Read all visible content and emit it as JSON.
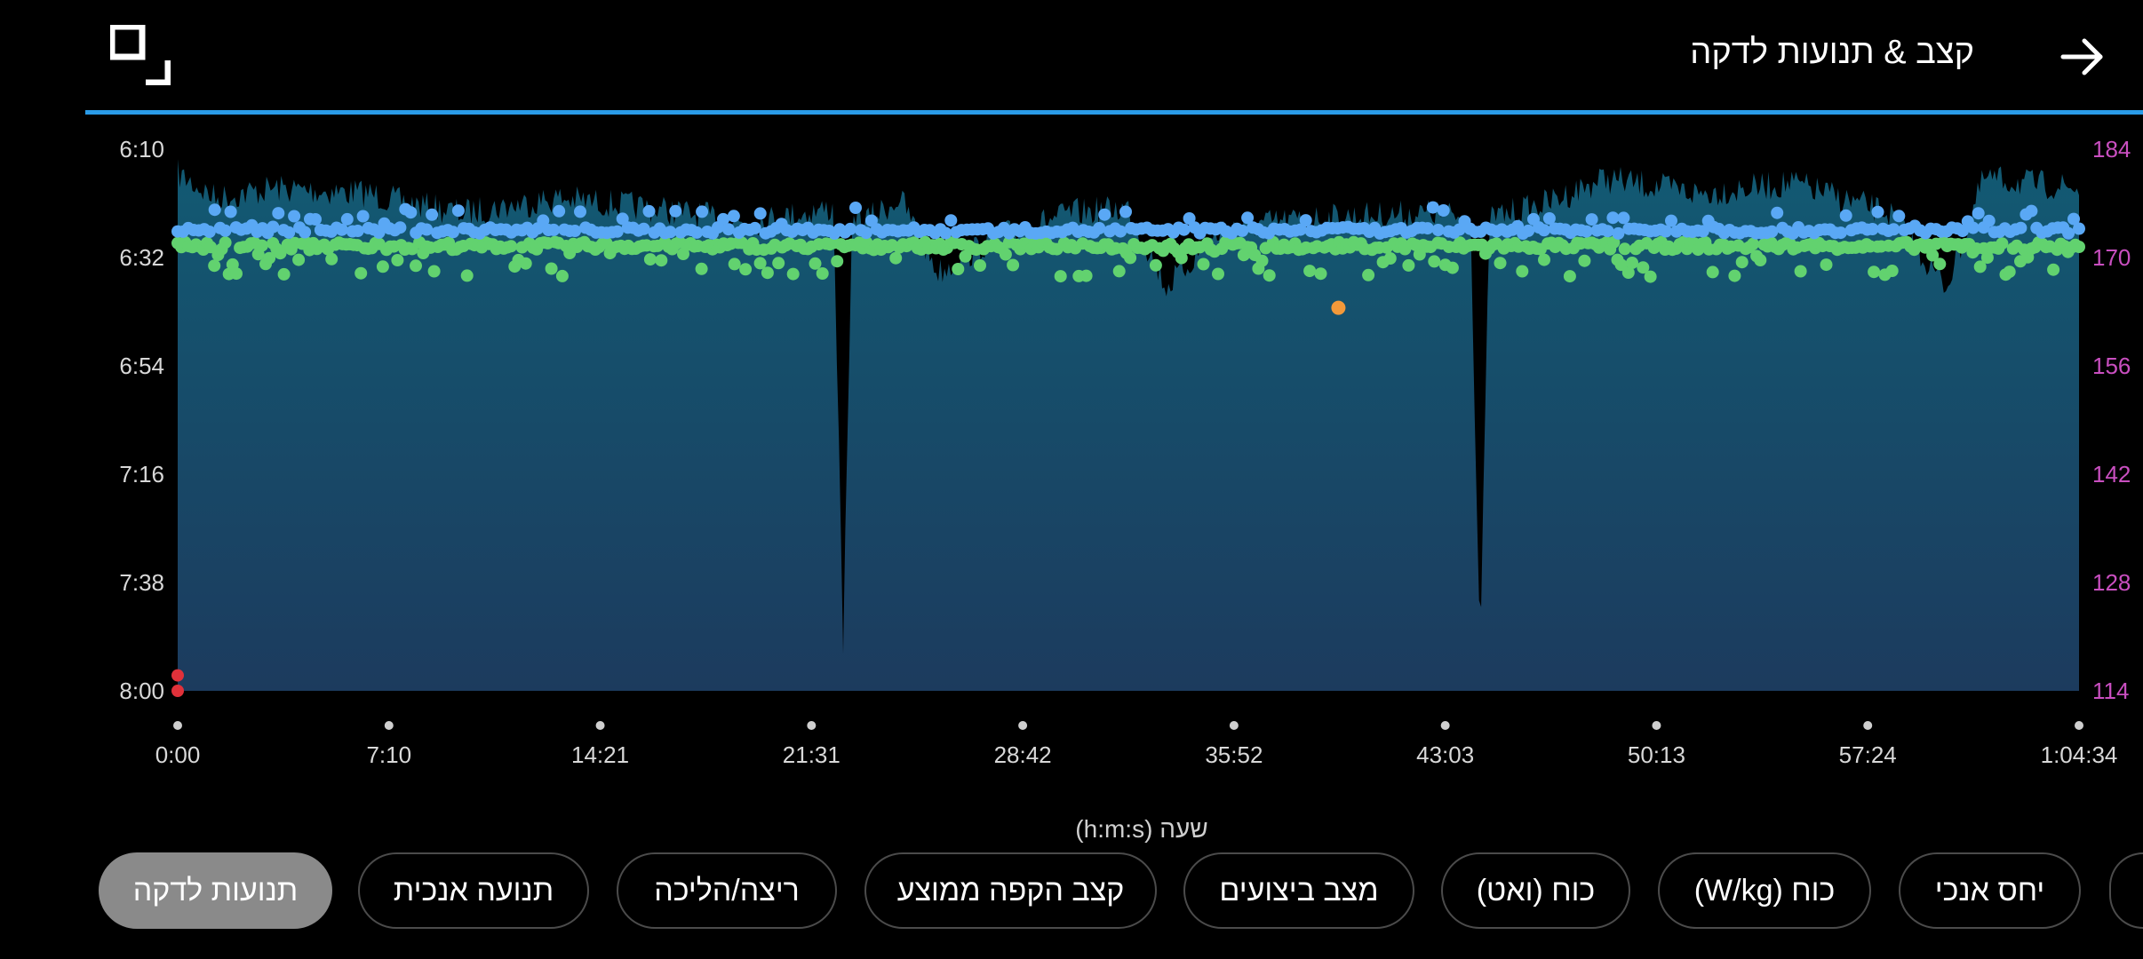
{
  "header": {
    "title": "קצב & תנועות לדקה",
    "back_icon": "arrow-right-icon",
    "expand_icon": "expand-icon"
  },
  "colors": {
    "accent_line": "#2a9be8",
    "pace_area_top": "#125a73",
    "pace_area_bottom": "#1c3b5e",
    "cadence_points": "#62d26f",
    "ground_points": "#5aa8f5",
    "right_axis_labels": "#c94fc0",
    "highlight_point": "#f2993a",
    "red_point": "#e0313a"
  },
  "chart_data": {
    "type": "area",
    "xlabel": "שעה (h:m:s)",
    "x_ticks": [
      "0:00",
      "7:10",
      "14:21",
      "21:31",
      "28:42",
      "35:52",
      "43:03",
      "50:13",
      "57:24",
      "1:04:34"
    ],
    "x_range_seconds": [
      0,
      3874
    ],
    "y_left": {
      "label": "",
      "ticks": [
        "6:10",
        "6:32",
        "6:54",
        "7:16",
        "7:38",
        "8:00"
      ],
      "range_min_per_km": [
        "6:10",
        "8:00"
      ],
      "scale": "pace"
    },
    "y_right": {
      "label": "",
      "ticks": [
        "184",
        "170",
        "156",
        "142",
        "128",
        "114"
      ],
      "range": [
        114,
        184
      ],
      "scale": "cadence"
    },
    "grid": false,
    "series": [
      {
        "kind": "pace-area",
        "profile_t": [
          0,
          0.02,
          0.05,
          0.1,
          0.12,
          0.15,
          0.2,
          0.25,
          0.3,
          0.33,
          0.345,
          0.35,
          0.355,
          0.36,
          0.38,
          0.4,
          0.43,
          0.47,
          0.5,
          0.52,
          0.55,
          0.6,
          0.66,
          0.68,
          0.685,
          0.69,
          0.7,
          0.72,
          0.75,
          0.8,
          0.85,
          0.9,
          0.93,
          0.95,
          1.0
        ],
        "profile_pace_sec": [
          375,
          380,
          378,
          379,
          381,
          383,
          380,
          382,
          385,
          383,
          382,
          470,
          382,
          385,
          380,
          395,
          388,
          383,
          382,
          398,
          386,
          384,
          383,
          384,
          472,
          384,
          383,
          381,
          376,
          379,
          377,
          383,
          398,
          376,
          378
        ]
      },
      {
        "kind": "cadence-points",
        "approx_value": 171.5,
        "min": 167.5,
        "max": 173.5
      },
      {
        "kind": "ground-points",
        "approx_value": 173.5,
        "min": 172.5,
        "max": 176.5
      },
      {
        "kind": "highlight-point",
        "t_seconds": 2365,
        "value": 163.5
      },
      {
        "kind": "red-points",
        "t_seconds": 0,
        "values": [
          116,
          114
        ]
      }
    ]
  },
  "chips": [
    {
      "label": "תנועות לדקה",
      "active": true
    },
    {
      "label": "תנועה אנכית",
      "active": false
    },
    {
      "label": "ריצה/הליכה",
      "active": false
    },
    {
      "label": "קצב הקפה ממוצע",
      "active": false
    },
    {
      "label": "מצב ביצועים",
      "active": false
    },
    {
      "label": "כוח (ואט)",
      "active": false
    },
    {
      "label": "כוח (W/kg)",
      "active": false
    },
    {
      "label": "יחס אנכי",
      "active": false
    }
  ]
}
